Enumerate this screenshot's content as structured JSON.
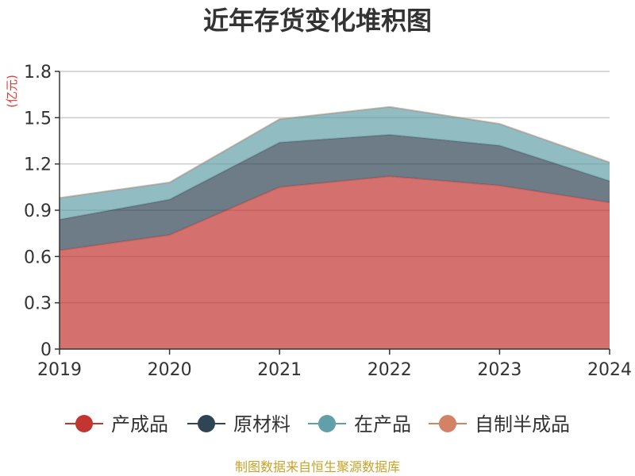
{
  "chart_data": {
    "type": "area",
    "stacked": true,
    "title": "近年存货变化堆积图",
    "ylabel": "(亿元)",
    "xlabel": "",
    "categories": [
      "2019",
      "2020",
      "2021",
      "2022",
      "2023",
      "2024"
    ],
    "ylim": [
      0,
      1.8
    ],
    "yticks": [
      "0",
      "0.3",
      "0.6",
      "0.9",
      "1.2",
      "1.5",
      "1.8"
    ],
    "grid": true,
    "legend_position": "bottom",
    "series": [
      {
        "name": "产成品",
        "color": "#c23531",
        "values": [
          0.64,
          0.74,
          1.05,
          1.12,
          1.06,
          0.95
        ]
      },
      {
        "name": "原材料",
        "color": "#2f4554",
        "values": [
          0.2,
          0.23,
          0.29,
          0.27,
          0.26,
          0.14
        ]
      },
      {
        "name": "在产品",
        "color": "#61a0a8",
        "values": [
          0.14,
          0.11,
          0.15,
          0.18,
          0.14,
          0.12
        ]
      },
      {
        "name": "自制半成品",
        "color": "#d48265",
        "values": [
          0,
          0,
          0,
          0,
          0,
          0
        ]
      }
    ]
  },
  "source": "制图数据来自恒生聚源数据库"
}
